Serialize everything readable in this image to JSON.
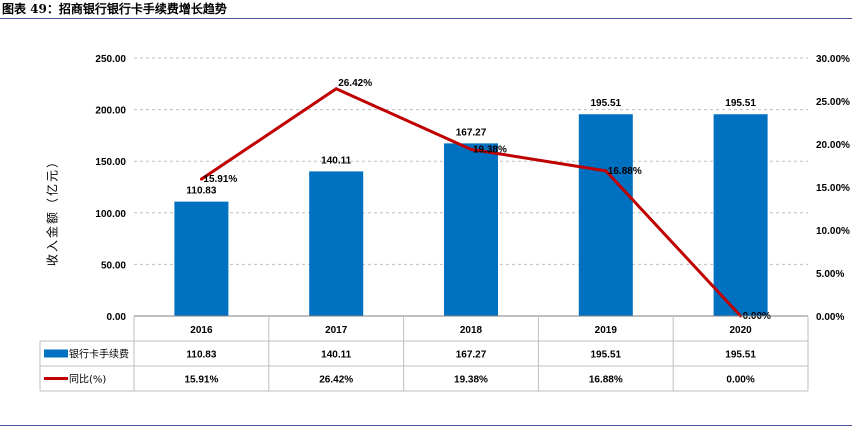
{
  "page_title": "图表 49：招商银行银行卡手续费增长趋势",
  "chart_data": {
    "type": "bar",
    "categories": [
      "2016",
      "2017",
      "2018",
      "2019",
      "2020"
    ],
    "series": [
      {
        "name": "银行卡手续费",
        "kind": "bar",
        "axis": "left",
        "color": "#0070c0",
        "values": [
          110.83,
          140.11,
          167.27,
          195.51,
          195.51
        ],
        "labels": [
          "110.83",
          "140.11",
          "167.27",
          "195.51",
          "195.51"
        ]
      },
      {
        "name": "同比(%)",
        "kind": "line",
        "axis": "right",
        "color": "#c00000",
        "values": [
          15.91,
          26.42,
          19.38,
          16.88,
          0.0
        ],
        "labels": [
          "15.91%",
          "26.42%",
          "19.38%",
          "16.88%",
          "0.00%"
        ]
      }
    ],
    "ylabel": "收入金额（亿元）",
    "ylim": [
      0,
      250
    ],
    "y_ticks": [
      "0.00",
      "50.00",
      "100.00",
      "150.00",
      "200.00",
      "250.00"
    ],
    "y2lim": [
      0,
      30
    ],
    "y2_ticks": [
      "0.00%",
      "5.00%",
      "10.00%",
      "15.00%",
      "20.00%",
      "25.00%",
      "30.00%"
    ],
    "grid": true,
    "data_table": true
  }
}
